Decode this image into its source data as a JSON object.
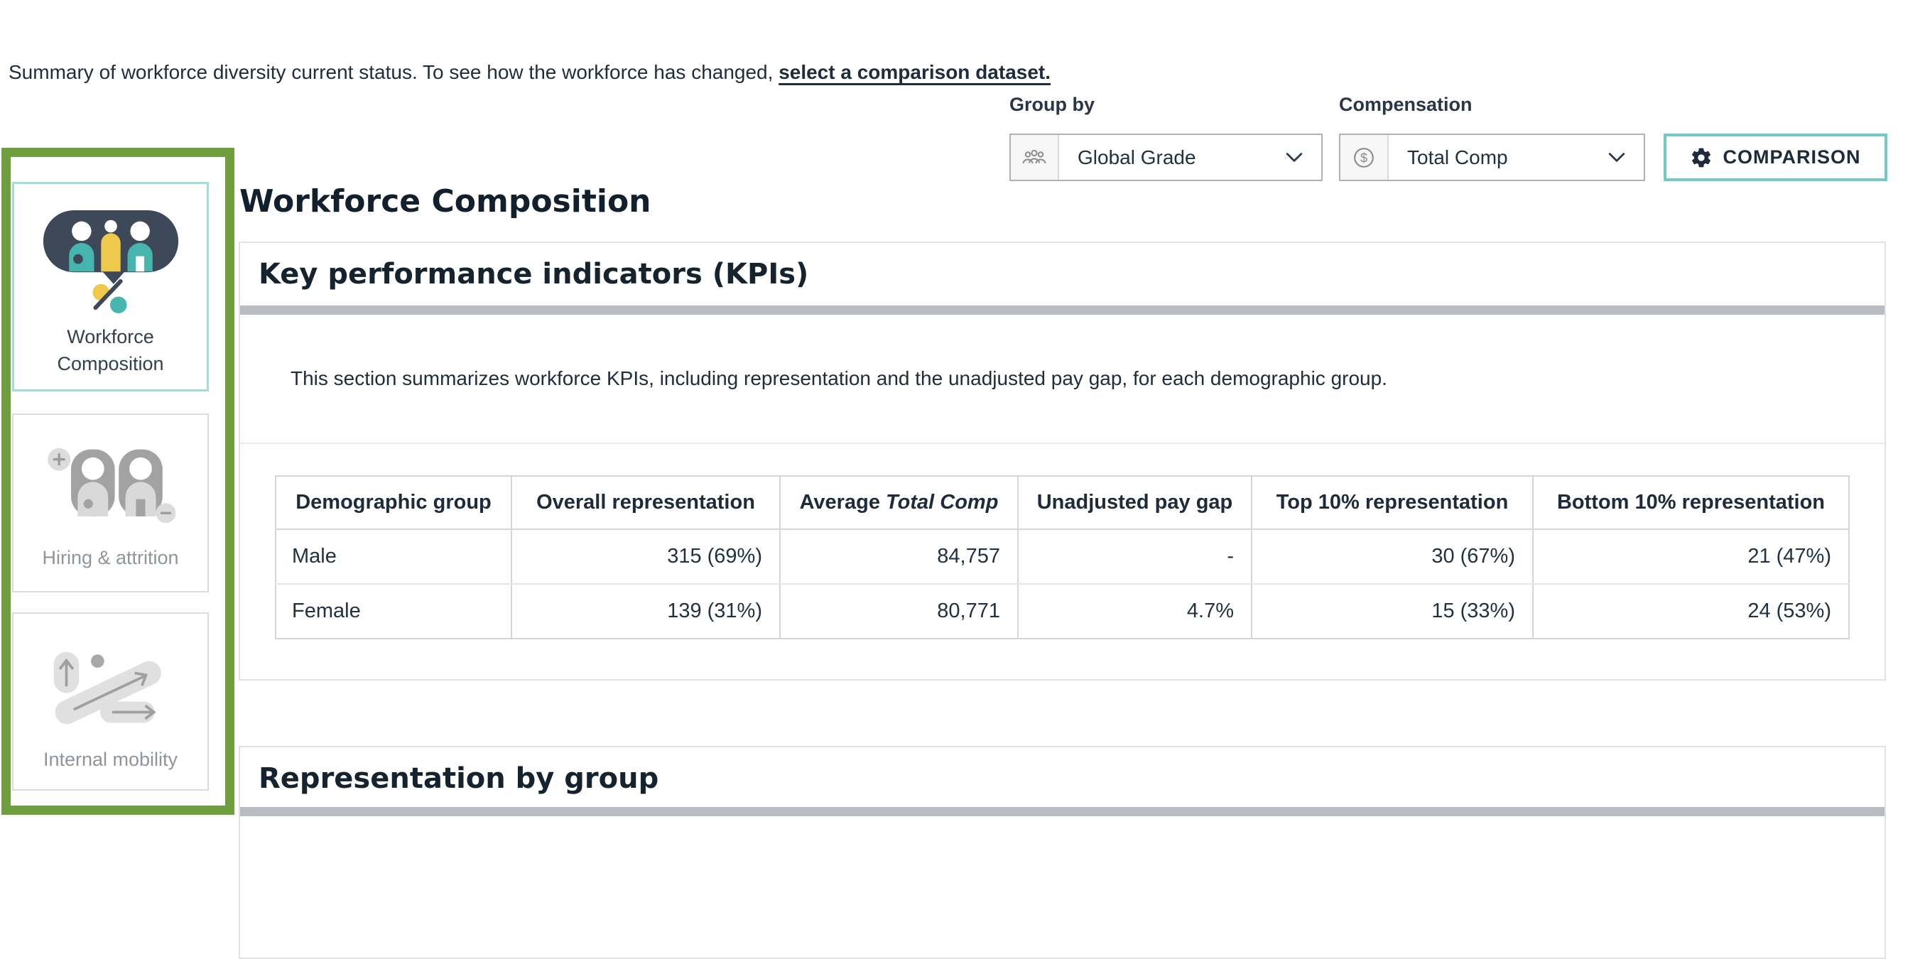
{
  "colors": {
    "navy_text": "#1f2c3c",
    "heading_navy": "#15232f",
    "sidebar_green": "#6f9e3e",
    "selected_teal": "#a3ddd7",
    "button_teal": "#72cac3",
    "divider_gray": "#b9bdc3",
    "icon_teal": "#45b5ae",
    "icon_yellow": "#efc94c",
    "icon_navy": "#3d4859",
    "icon_gray": "#a2a2a2"
  },
  "intro": {
    "text_before_link": "Summary of workforce diversity current status. To see how the workforce has changed, ",
    "link_text": "select a comparison dataset."
  },
  "controls": {
    "group_by": {
      "label": "Group by",
      "value": "Global Grade",
      "icon": "people-group-icon"
    },
    "compensation": {
      "label": "Compensation",
      "value": "Total Comp",
      "icon": "dollar-circle-icon"
    },
    "comparison_button": {
      "label": "COMPARISON",
      "icon": "gear-icon"
    }
  },
  "sidebar": {
    "items": [
      {
        "label": "Workforce Composition",
        "icon": "workforce-composition-icon",
        "selected": true
      },
      {
        "label": "Hiring & attrition",
        "icon": "hiring-attrition-icon",
        "selected": false
      },
      {
        "label": "Internal mobility",
        "icon": "internal-mobility-icon",
        "selected": false
      }
    ]
  },
  "main": {
    "title": "Workforce Composition",
    "kpi_section": {
      "heading": "Key performance indicators (KPIs)",
      "description": "This section summarizes workforce KPIs, including representation and the unadjusted pay gap, for each demographic group.",
      "table": {
        "columns": [
          {
            "text": "Demographic group"
          },
          {
            "text": "Overall representation"
          },
          {
            "text": "Average ",
            "italic": "Total Comp"
          },
          {
            "text": "Unadjusted pay gap"
          },
          {
            "text": "Top 10% representation"
          },
          {
            "text": "Bottom 10% representation"
          }
        ],
        "rows": [
          [
            "Male",
            "315 (69%)",
            "84,757",
            "-",
            "30 (67%)",
            "21 (47%)"
          ],
          [
            "Female",
            "139 (31%)",
            "80,771",
            "4.7%",
            "15 (33%)",
            "24 (53%)"
          ]
        ]
      }
    },
    "representation_section": {
      "heading": "Representation by group"
    }
  }
}
